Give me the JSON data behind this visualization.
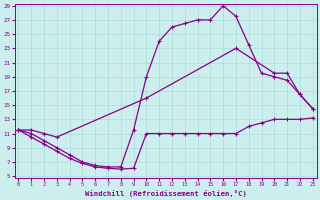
{
  "xlabel": "Windchill (Refroidissement éolien,°C)",
  "xlim": [
    0,
    23
  ],
  "ylim": [
    5,
    29
  ],
  "xticks": [
    0,
    1,
    2,
    3,
    4,
    5,
    6,
    7,
    8,
    9,
    10,
    11,
    12,
    13,
    14,
    15,
    16,
    17,
    18,
    19,
    20,
    21,
    22,
    23
  ],
  "yticks": [
    5,
    7,
    9,
    11,
    13,
    15,
    17,
    19,
    21,
    23,
    25,
    27,
    29
  ],
  "bg_color": "#cceeed",
  "line_color": "#880088",
  "grid_color": "#aadddd",
  "line1_x": [
    0,
    1,
    2,
    3,
    4,
    5,
    6,
    7,
    8,
    9,
    10,
    11,
    12,
    13,
    14,
    15,
    16,
    17,
    18,
    19,
    20,
    21,
    22,
    23
  ],
  "line1_y": [
    11.5,
    10.5,
    9.5,
    8.5,
    7.5,
    6.8,
    6.3,
    6.1,
    6.0,
    6.1,
    11.0,
    11.0,
    11.0,
    11.0,
    11.0,
    11.0,
    11.0,
    11.0,
    12.0,
    12.5,
    13.0,
    13.0,
    13.0,
    13.2
  ],
  "line2_x": [
    0,
    1,
    2,
    3,
    4,
    5,
    6,
    7,
    8,
    9,
    10,
    11,
    12,
    13,
    14,
    15,
    16,
    17,
    18,
    19,
    20,
    21,
    22,
    23
  ],
  "line2_y": [
    11.5,
    11.0,
    10.0,
    9.0,
    8.0,
    7.0,
    6.5,
    6.3,
    6.3,
    11.5,
    19.0,
    24.0,
    26.0,
    26.5,
    27.0,
    27.0,
    29.0,
    27.5,
    23.5,
    19.5,
    19.0,
    18.5,
    16.5,
    14.5
  ],
  "line3_x": [
    0,
    1,
    2,
    3,
    10,
    17,
    20,
    21,
    22,
    23
  ],
  "line3_y": [
    11.5,
    11.5,
    11.0,
    10.5,
    16.0,
    23.0,
    19.5,
    19.5,
    16.5,
    14.5
  ]
}
